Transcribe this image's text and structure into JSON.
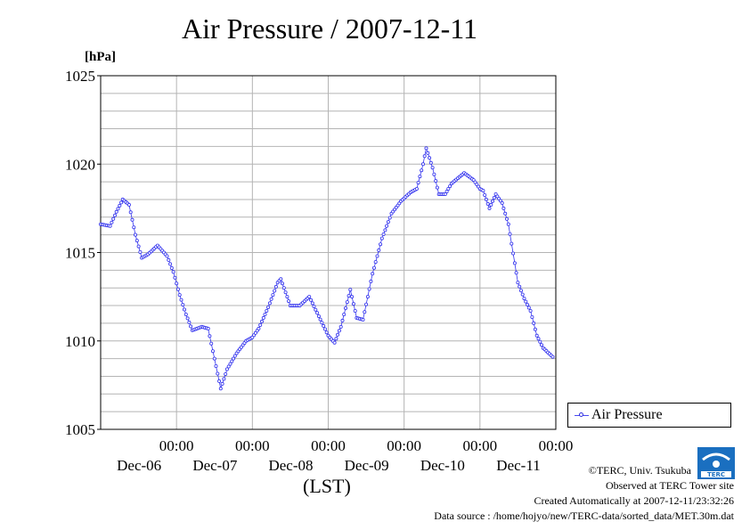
{
  "title": "Air Pressure / 2007-12-11",
  "unit_label": "[hPa]",
  "xlabel": "(LST)",
  "legend": {
    "label": "Air Pressure"
  },
  "footer": {
    "copyright": "©TERC, Univ. Tsukuba",
    "observed": "Observed at TERC Tower site",
    "created": "Created Automatically at 2007-12-11/23:32:26",
    "source": "Data source : /home/hojyo/new/TERC-data/sorted_data/MET.30m.dat"
  },
  "logo": {
    "text": "TERC",
    "icon": "terc-logo-icon"
  },
  "colors": {
    "series": "#3333ee",
    "grid": "#b4b4b4",
    "logo": "#1a6fc0"
  },
  "chart_data": {
    "type": "line",
    "title": "Air Pressure / 2007-12-11",
    "ylabel": "[hPa]",
    "xlabel": "(LST)",
    "ylim": [
      1005,
      1025
    ],
    "yticks": [
      "1005",
      "1010",
      "1015",
      "1020",
      "1025"
    ],
    "xlim_days": [
      "2007-12-06 00:00",
      "2007-12-12 00:00"
    ],
    "xticks": [
      {
        "time": "00:00",
        "date": "Dec-06"
      },
      {
        "time": "00:00",
        "date": "Dec-07"
      },
      {
        "time": "00:00",
        "date": "Dec-08"
      },
      {
        "time": "00:00",
        "date": "Dec-09"
      },
      {
        "time": "00:00",
        "date": "Dec-10"
      },
      {
        "time": "00:00",
        "date": "Dec-11"
      }
    ],
    "grid": true,
    "legend_position": "lower-right, outside plot",
    "interval": "30 min",
    "series": [
      {
        "name": "Air Pressure",
        "points": [
          [
            "12-06 00:00",
            1016.6
          ],
          [
            "12-06 03:00",
            1016.5
          ],
          [
            "12-06 05:00",
            1017.3
          ],
          [
            "12-06 07:00",
            1018.0
          ],
          [
            "12-06 09:00",
            1017.7
          ],
          [
            "12-06 11:00",
            1016.0
          ],
          [
            "12-06 13:00",
            1014.7
          ],
          [
            "12-06 15:00",
            1014.9
          ],
          [
            "12-06 18:00",
            1015.4
          ],
          [
            "12-06 21:00",
            1014.8
          ],
          [
            "12-06 23:00",
            1013.9
          ],
          [
            "12-07 01:00",
            1012.6
          ],
          [
            "12-07 03:00",
            1011.5
          ],
          [
            "12-07 05:00",
            1010.6
          ],
          [
            "12-07 08:00",
            1010.8
          ],
          [
            "12-07 10:00",
            1010.7
          ],
          [
            "12-07 12:00",
            1009.0
          ],
          [
            "12-07 14:00",
            1007.3
          ],
          [
            "12-07 16:00",
            1008.4
          ],
          [
            "12-07 19:00",
            1009.3
          ],
          [
            "12-07 22:00",
            1010.0
          ],
          [
            "12-08 00:00",
            1010.2
          ],
          [
            "12-08 02:00",
            1010.7
          ],
          [
            "12-08 05:00",
            1011.9
          ],
          [
            "12-08 08:00",
            1013.3
          ],
          [
            "12-08 09:00",
            1013.5
          ],
          [
            "12-08 12:00",
            1012.0
          ],
          [
            "12-08 15:00",
            1012.0
          ],
          [
            "12-08 18:00",
            1012.5
          ],
          [
            "12-08 21:00",
            1011.4
          ],
          [
            "12-09 00:00",
            1010.3
          ],
          [
            "12-09 02:00",
            1009.9
          ],
          [
            "12-09 04:00",
            1010.8
          ],
          [
            "12-09 07:00",
            1012.9
          ],
          [
            "12-09 09:00",
            1011.3
          ],
          [
            "12-09 11:00",
            1011.2
          ],
          [
            "12-09 14:00",
            1013.8
          ],
          [
            "12-09 17:00",
            1015.8
          ],
          [
            "12-09 20:00",
            1017.2
          ],
          [
            "12-09 23:00",
            1017.9
          ],
          [
            "12-10 02:00",
            1018.4
          ],
          [
            "12-10 04:00",
            1018.6
          ],
          [
            "12-10 06:00",
            1020.0
          ],
          [
            "12-10 07:00",
            1020.9
          ],
          [
            "12-10 09:00",
            1019.8
          ],
          [
            "12-10 11:00",
            1018.3
          ],
          [
            "12-10 13:00",
            1018.3
          ],
          [
            "12-10 15:00",
            1018.9
          ],
          [
            "12-10 17:00",
            1019.2
          ],
          [
            "12-10 19:00",
            1019.5
          ],
          [
            "12-10 22:00",
            1019.1
          ],
          [
            "12-11 00:00",
            1018.6
          ],
          [
            "12-11 01:00",
            1018.5
          ],
          [
            "12-11 03:00",
            1017.5
          ],
          [
            "12-11 05:00",
            1018.3
          ],
          [
            "12-11 07:00",
            1017.8
          ],
          [
            "12-11 09:00",
            1016.6
          ],
          [
            "12-11 12:00",
            1013.3
          ],
          [
            "12-11 14:00",
            1012.4
          ],
          [
            "12-11 16:00",
            1011.7
          ],
          [
            "12-11 18:00",
            1010.3
          ],
          [
            "12-11 20:00",
            1009.6
          ],
          [
            "12-11 23:00",
            1009.1
          ]
        ]
      }
    ]
  }
}
